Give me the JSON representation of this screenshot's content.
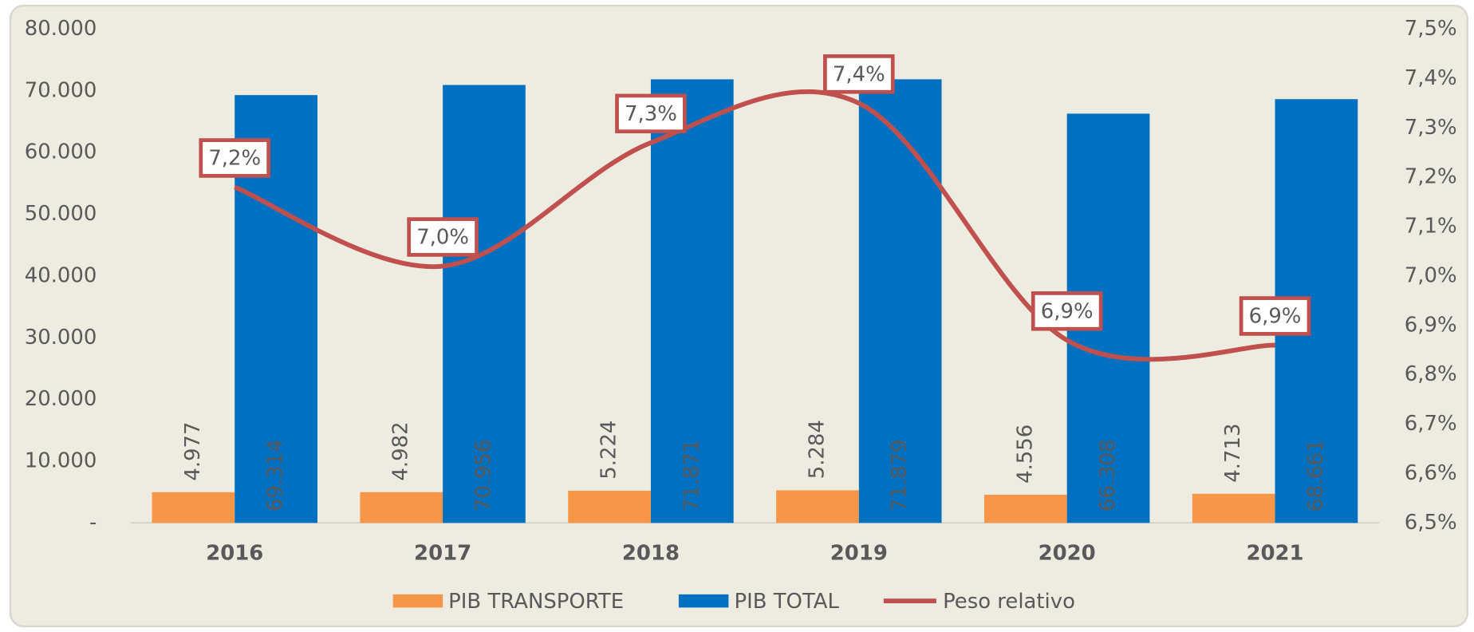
{
  "chart_data": {
    "type": "bar",
    "categories": [
      "2016",
      "2017",
      "2018",
      "2019",
      "2020",
      "2021"
    ],
    "series": [
      {
        "name": "PIB TRANSPORTE",
        "color": "#f79646",
        "values": [
          4977,
          4982,
          5224,
          5284,
          4556,
          4713
        ],
        "value_labels": [
          "4.977",
          "4.982",
          "5.224",
          "5.284",
          "4.556",
          "4.713"
        ]
      },
      {
        "name": "PIB TOTAL",
        "color": "#0070c0",
        "values": [
          69314,
          70956,
          71871,
          71879,
          66308,
          68661
        ],
        "value_labels": [
          "69.314",
          "70.956",
          "71.871",
          "71.879",
          "66.308",
          "68.661"
        ]
      },
      {
        "name": "Peso relativo",
        "type": "line",
        "axis": "y2",
        "color": "#c0504d",
        "values": [
          7.18,
          7.02,
          7.27,
          7.35,
          6.87,
          6.86
        ],
        "value_labels": [
          "7,2%",
          "7,0%",
          "7,3%",
          "7,4%",
          "6,9%",
          "6,9%"
        ]
      }
    ],
    "ylim": [
      0,
      80000
    ],
    "yticks": [
      {
        "value": 0,
        "label": "-"
      },
      {
        "value": 10000,
        "label": "10.000"
      },
      {
        "value": 20000,
        "label": "20.000"
      },
      {
        "value": 30000,
        "label": "30.000"
      },
      {
        "value": 40000,
        "label": "40.000"
      },
      {
        "value": 50000,
        "label": "50.000"
      },
      {
        "value": 60000,
        "label": "60.000"
      },
      {
        "value": 70000,
        "label": "70.000"
      },
      {
        "value": 80000,
        "label": "80.000"
      }
    ],
    "y2lim": [
      6.5,
      7.5
    ],
    "y2ticks": [
      {
        "value": 6.5,
        "label": "6,5%"
      },
      {
        "value": 6.6,
        "label": "6,6%"
      },
      {
        "value": 6.7,
        "label": "6,7%"
      },
      {
        "value": 6.8,
        "label": "6,8%"
      },
      {
        "value": 6.9,
        "label": "6,9%"
      },
      {
        "value": 7.0,
        "label": "7,0%"
      },
      {
        "value": 7.1,
        "label": "7,1%"
      },
      {
        "value": 7.2,
        "label": "7,2%"
      },
      {
        "value": 7.3,
        "label": "7,3%"
      },
      {
        "value": 7.4,
        "label": "7,4%"
      },
      {
        "value": 7.5,
        "label": "7,5%"
      }
    ],
    "grid": false,
    "legend": "bottom"
  }
}
